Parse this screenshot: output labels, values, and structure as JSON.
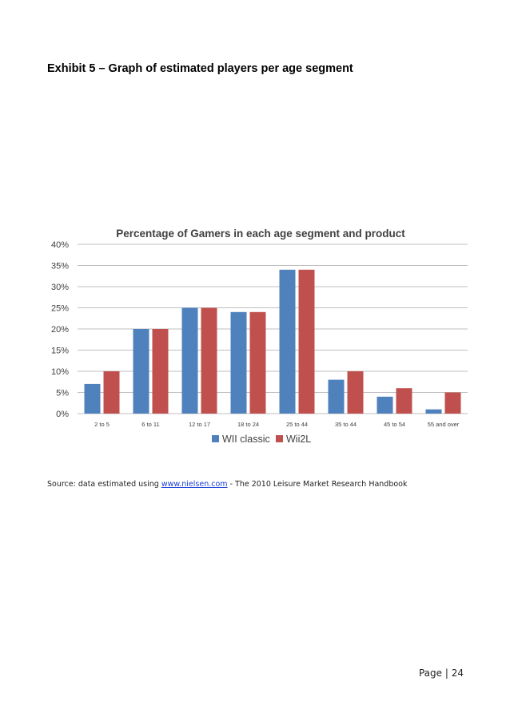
{
  "heading": "Exhibit 5 – Graph of estimated players per age segment",
  "source": {
    "prefix": "Source: data estimated using ",
    "link": "www.nielsen.com",
    "suffix": " - The 2010 Leisure Market Research Handbook"
  },
  "footer": {
    "page_label": "Page",
    "separator": "|",
    "page_number": "24"
  },
  "chart_data": {
    "type": "bar",
    "title": "Percentage of Gamers in each age segment and product",
    "categories": [
      "2 to 5",
      "6 to 11",
      "12 to 17",
      "18 to 24",
      "25 to 44",
      "35 to 44",
      "45 to 54",
      "55 and over"
    ],
    "series": [
      {
        "name": "WII classic",
        "color": "#4f81bd",
        "values": [
          7,
          20,
          25,
          24,
          34,
          8,
          4,
          1
        ]
      },
      {
        "name": "Wii2L",
        "color": "#c0504d",
        "values": [
          10,
          20,
          25,
          24,
          34,
          10,
          6,
          5
        ]
      }
    ],
    "yticks": [
      "0%",
      "5%",
      "10%",
      "15%",
      "20%",
      "25%",
      "30%",
      "35%",
      "40%"
    ],
    "ylim": [
      0,
      40
    ],
    "xlabel": "",
    "ylabel": "",
    "grid": true,
    "legend": "bottom"
  }
}
